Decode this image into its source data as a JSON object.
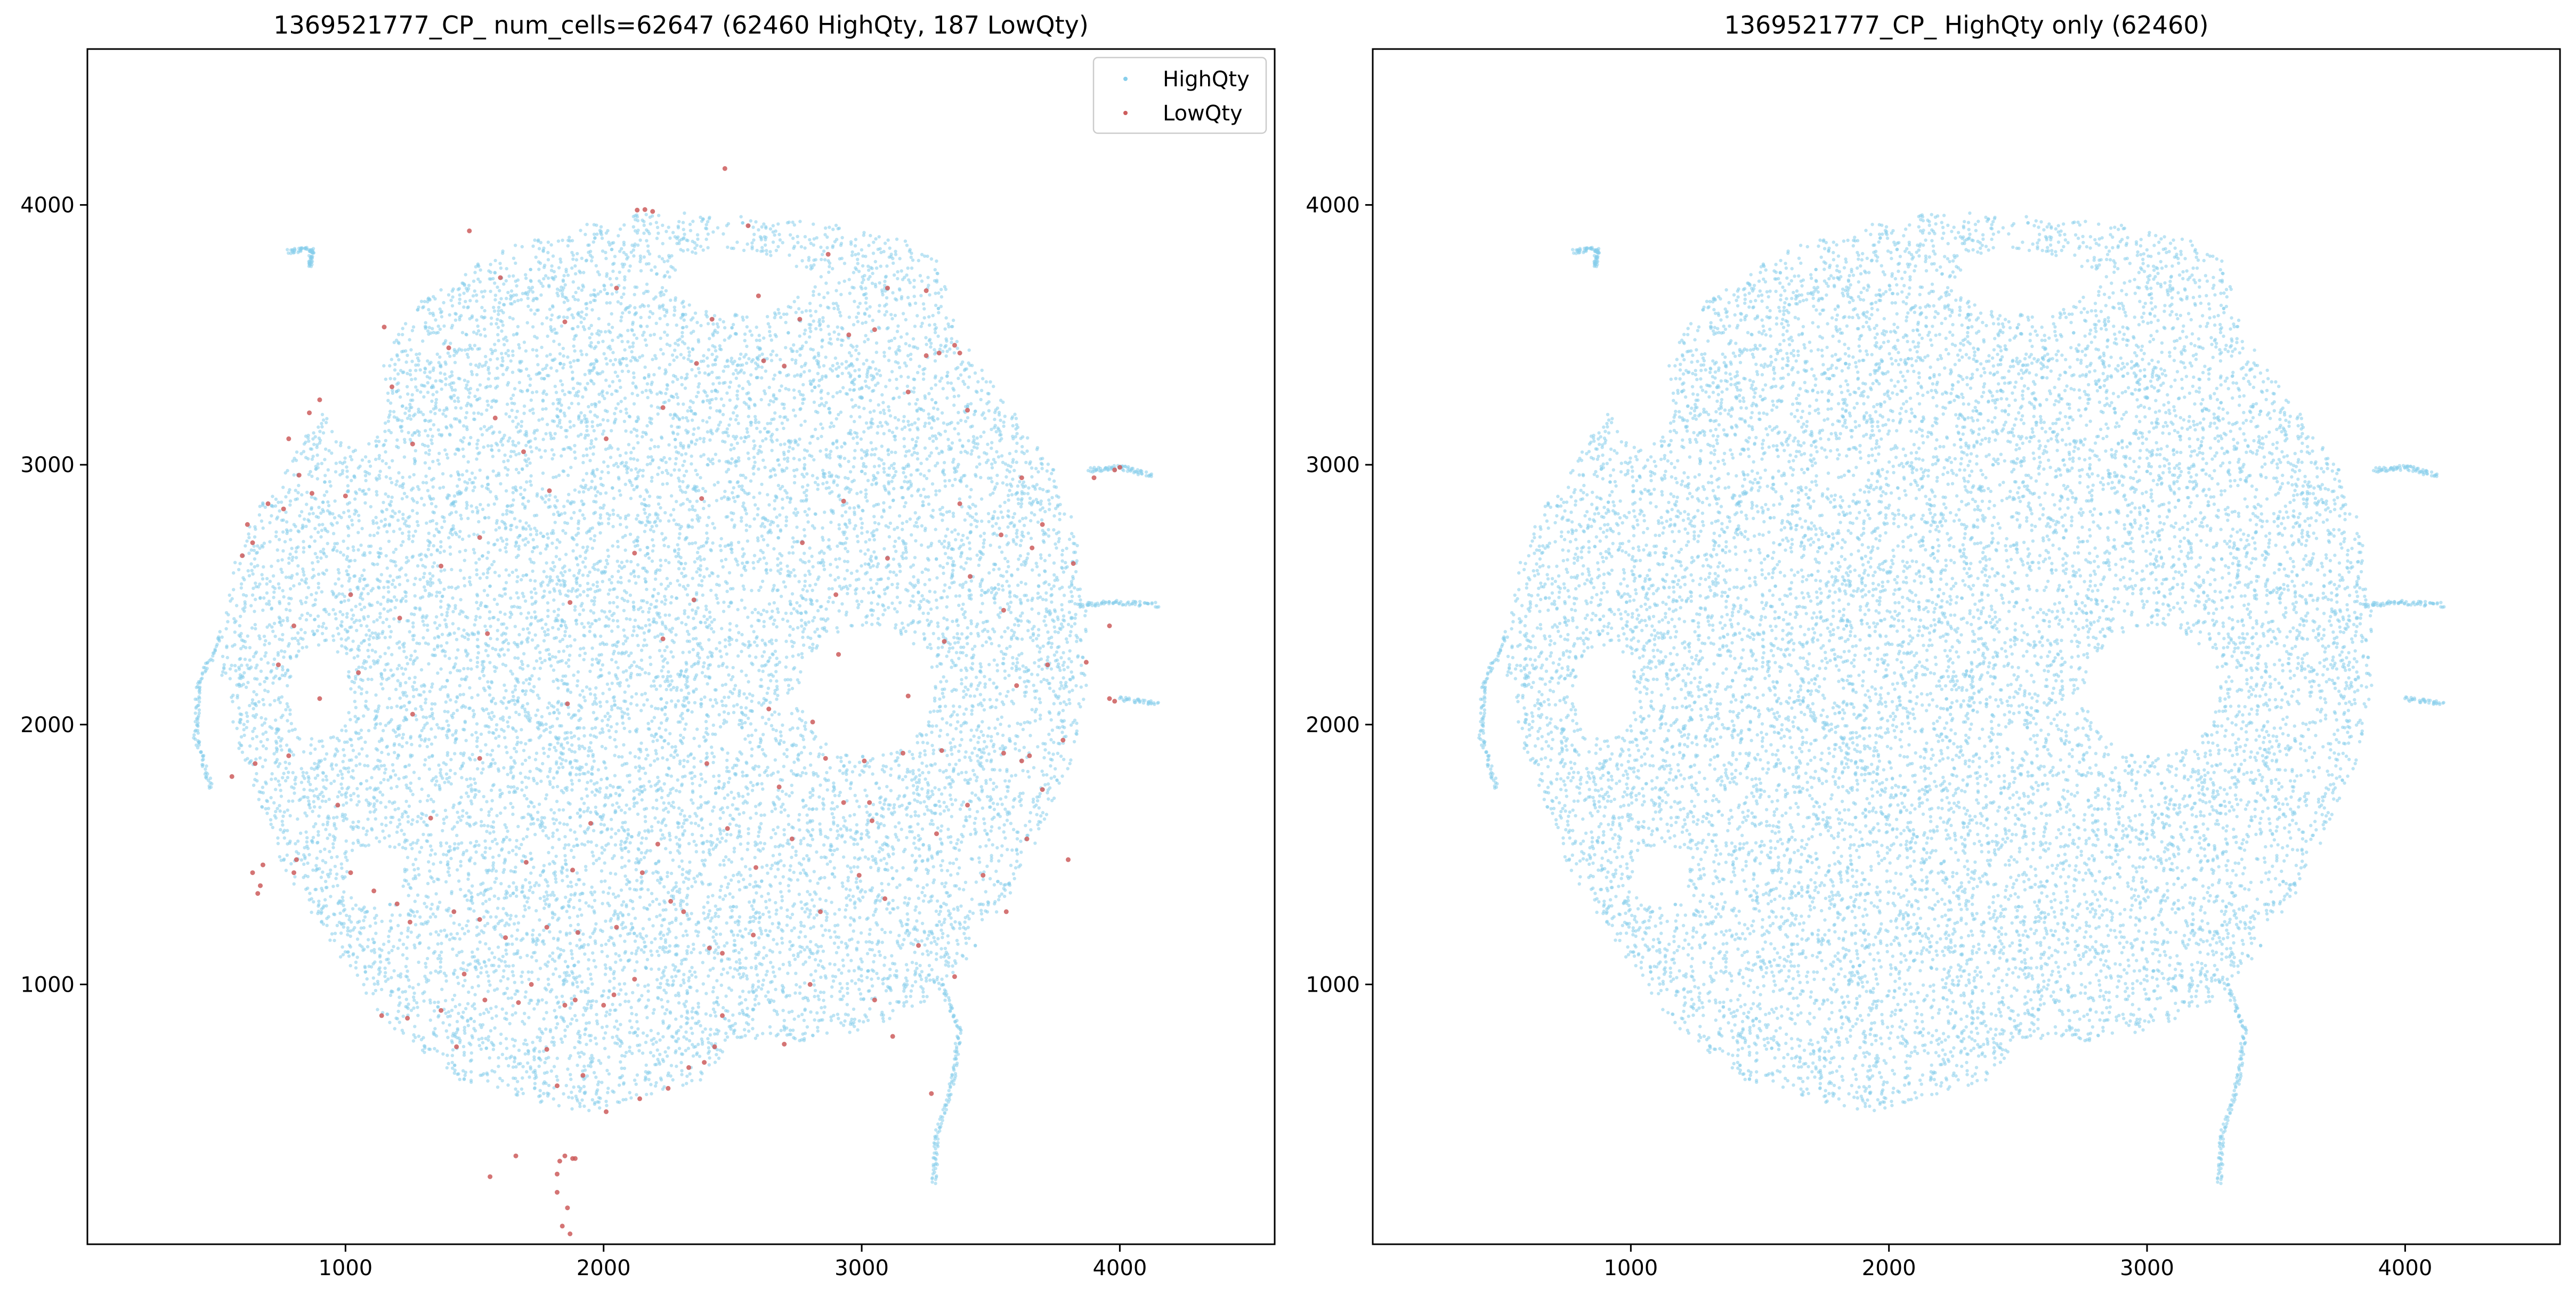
{
  "colors": {
    "high": "#87ceeb",
    "low": "#cd5c5c",
    "axes": "#000000",
    "background": "#ffffff"
  },
  "chart_data": [
    {
      "type": "scatter",
      "title": "1369521777_CP_ num_cells=62647 (62460 HighQty, 187 LowQty)",
      "xlabel": "",
      "ylabel": "",
      "xlim": [
        0,
        4600
      ],
      "ylim": [
        0,
        4600
      ],
      "xticks": [
        1000,
        2000,
        3000,
        4000
      ],
      "yticks": [
        1000,
        2000,
        3000,
        4000
      ],
      "grid": false,
      "legend": {
        "placement": "upper-right",
        "entries": [
          {
            "label": "HighQty",
            "color": "#87ceeb"
          },
          {
            "label": "LowQty",
            "color": "#cd5c5c"
          }
        ]
      },
      "series": [
        {
          "name": "HighQty",
          "count": 62460,
          "color": "#87ceeb"
        },
        {
          "name": "LowQty",
          "count": 187,
          "color": "#cd5c5c",
          "points": [
            [
              2130,
              3980
            ],
            [
              2190,
              3975
            ],
            [
              2160,
              3982
            ],
            [
              2470,
              4140
            ],
            [
              3360,
              3460
            ],
            [
              3380,
              3430
            ],
            [
              3300,
              3430
            ],
            [
              3250,
              3420
            ],
            [
              3100,
              3680
            ],
            [
              3250,
              3670
            ],
            [
              3050,
              3520
            ],
            [
              2760,
              3560
            ],
            [
              2600,
              3650
            ],
            [
              2620,
              3400
            ],
            [
              2420,
              3560
            ],
            [
              2360,
              3390
            ],
            [
              2050,
              3680
            ],
            [
              1690,
              3050
            ],
            [
              1260,
              3080
            ],
            [
              1180,
              3300
            ],
            [
              900,
              3250
            ],
            [
              860,
              3200
            ],
            [
              780,
              3100
            ],
            [
              820,
              2960
            ],
            [
              870,
              2890
            ],
            [
              760,
              2830
            ],
            [
              620,
              2770
            ],
            [
              700,
              2850
            ],
            [
              640,
              2700
            ],
            [
              600,
              2650
            ],
            [
              2380,
              2870
            ],
            [
              1550,
              2350
            ],
            [
              1210,
              2410
            ],
            [
              1020,
              2500
            ],
            [
              800,
              2380
            ],
            [
              1870,
              2470
            ],
            [
              1860,
              2080
            ],
            [
              1880,
              1440
            ],
            [
              1950,
              1620
            ],
            [
              2350,
              2480
            ],
            [
              2900,
              2500
            ],
            [
              2770,
              2700
            ],
            [
              3100,
              2640
            ],
            [
              2930,
              2860
            ],
            [
              3380,
              2850
            ],
            [
              3540,
              2730
            ],
            [
              3660,
              2680
            ],
            [
              3700,
              2770
            ],
            [
              3900,
              2950
            ],
            [
              4000,
              2990
            ],
            [
              3980,
              2980
            ],
            [
              3960,
              2100
            ],
            [
              3980,
              2090
            ],
            [
              3960,
              2380
            ],
            [
              3720,
              2230
            ],
            [
              3600,
              2150
            ],
            [
              3650,
              1880
            ],
            [
              3620,
              1860
            ],
            [
              3550,
              1890
            ],
            [
              3700,
              1750
            ],
            [
              3640,
              1560
            ],
            [
              3800,
              1480
            ],
            [
              3410,
              1690
            ],
            [
              3290,
              1580
            ],
            [
              3030,
              1700
            ],
            [
              2930,
              1700
            ],
            [
              3040,
              1630
            ],
            [
              2730,
              1560
            ],
            [
              2590,
              1450
            ],
            [
              2410,
              1140
            ],
            [
              2460,
              1120
            ],
            [
              2990,
              1420
            ],
            [
              3090,
              1330
            ],
            [
              3310,
              1900
            ],
            [
              3160,
              1890
            ],
            [
              3010,
              1860
            ],
            [
              2860,
              1870
            ],
            [
              2810,
              2010
            ],
            [
              2400,
              1850
            ],
            [
              2210,
              1540
            ],
            [
              2310,
              1280
            ],
            [
              2260,
              1320
            ],
            [
              1780,
              1220
            ],
            [
              1620,
              1180
            ],
            [
              1520,
              1250
            ],
            [
              1420,
              1280
            ],
            [
              1250,
              1240
            ],
            [
              1200,
              1310
            ],
            [
              1110,
              1360
            ],
            [
              1020,
              1430
            ],
            [
              810,
              1480
            ],
            [
              800,
              1430
            ],
            [
              680,
              1460
            ],
            [
              640,
              1430
            ],
            [
              670,
              1380
            ],
            [
              660,
              1350
            ],
            [
              780,
              1880
            ],
            [
              650,
              1850
            ],
            [
              560,
              1800
            ],
            [
              1900,
              1200
            ],
            [
              2120,
              1020
            ],
            [
              2040,
              960
            ],
            [
              2000,
              920
            ],
            [
              1850,
              920
            ],
            [
              1890,
              940
            ],
            [
              1670,
              930
            ],
            [
              1540,
              940
            ],
            [
              1370,
              900
            ],
            [
              1240,
              870
            ],
            [
              1140,
              880
            ],
            [
              1430,
              760
            ],
            [
              1780,
              750
            ],
            [
              1920,
              650
            ],
            [
              2010,
              510
            ],
            [
              1820,
              610
            ],
            [
              2250,
              600
            ],
            [
              2140,
              560
            ],
            [
              2390,
              700
            ],
            [
              2430,
              760
            ],
            [
              2330,
              680
            ],
            [
              2460,
              880
            ],
            [
              2800,
              1000
            ],
            [
              3050,
              940
            ],
            [
              3270,
              580
            ],
            [
              1850,
              340
            ],
            [
              1830,
              320
            ],
            [
              1880,
              330
            ],
            [
              1820,
              270
            ],
            [
              1560,
              260
            ],
            [
              1660,
              340
            ],
            [
              1820,
              200
            ],
            [
              1860,
              140
            ],
            [
              1840,
              70
            ],
            [
              1870,
              40
            ],
            [
              1890,
              330
            ],
            [
              2700,
              3380
            ],
            [
              2950,
              3500
            ],
            [
              3180,
              3280
            ],
            [
              1400,
              3450
            ],
            [
              1600,
              3720
            ],
            [
              1850,
              3550
            ],
            [
              2230,
              3220
            ],
            [
              2010,
              3100
            ],
            [
              1520,
              2720
            ],
            [
              1370,
              2610
            ],
            [
              1050,
              2200
            ],
            [
              1260,
              2040
            ],
            [
              1520,
              1870
            ],
            [
              2230,
              2330
            ],
            [
              2640,
              2060
            ],
            [
              3320,
              2320
            ],
            [
              3420,
              2570
            ],
            [
              3550,
              2440
            ],
            [
              3180,
              2110
            ],
            [
              3470,
              1420
            ],
            [
              3220,
              1150
            ],
            [
              2840,
              1280
            ],
            [
              2580,
              1190
            ],
            [
              2050,
              1220
            ],
            [
              1700,
              1470
            ],
            [
              1330,
              1640
            ],
            [
              970,
              1690
            ],
            [
              900,
              2100
            ],
            [
              740,
              2230
            ],
            [
              1000,
              2880
            ],
            [
              1150,
              3530
            ],
            [
              1480,
              3900
            ],
            [
              2560,
              3920
            ],
            [
              2870,
              3810
            ],
            [
              3410,
              3210
            ],
            [
              3620,
              2950
            ],
            [
              3820,
              2620
            ],
            [
              3870,
              2240
            ],
            [
              3780,
              1940
            ],
            [
              3560,
              1280
            ],
            [
              3360,
              1030
            ],
            [
              3120,
              800
            ],
            [
              2700,
              770
            ],
            [
              1720,
              1000
            ],
            [
              1460,
              1040
            ],
            [
              2150,
              1430
            ],
            [
              2480,
              1600
            ],
            [
              2680,
              1760
            ],
            [
              2910,
              2270
            ],
            [
              2120,
              2660
            ],
            [
              1790,
              2900
            ],
            [
              1580,
              3180
            ]
          ]
        }
      ]
    },
    {
      "type": "scatter",
      "title": "1369521777_CP_ HighQty only (62460)",
      "xlabel": "",
      "ylabel": "",
      "xlim": [
        0,
        4600
      ],
      "ylim": [
        0,
        4600
      ],
      "xticks": [
        1000,
        2000,
        3000,
        4000
      ],
      "yticks": [
        1000,
        2000,
        3000,
        4000
      ],
      "grid": false,
      "series": [
        {
          "count": 62460,
          "color": "#87ceeb"
        }
      ]
    }
  ]
}
